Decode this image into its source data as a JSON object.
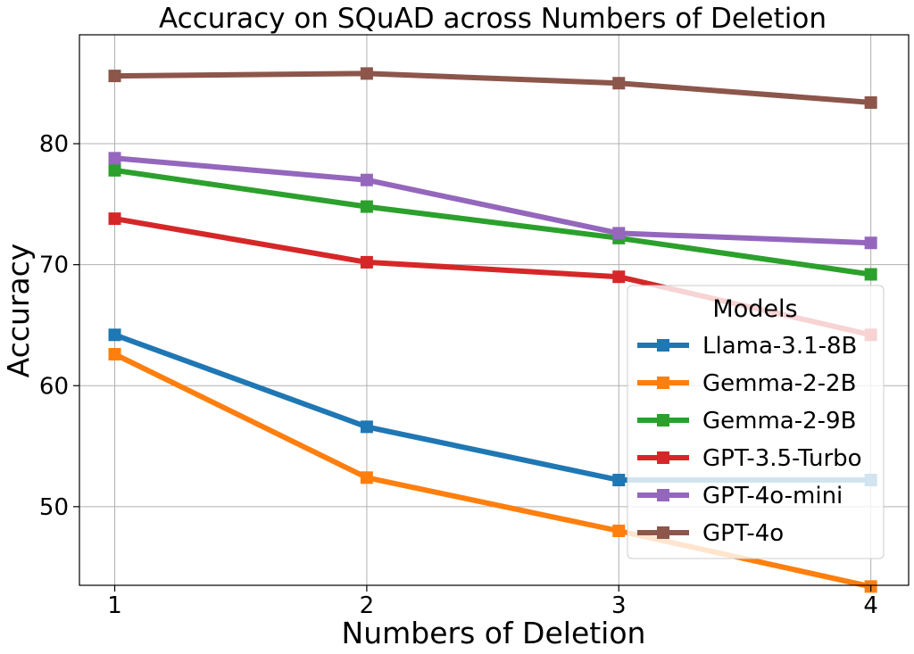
{
  "chart_data": {
    "type": "line",
    "title": "Accuracy on SQuAD across Numbers of Deletion",
    "xlabel": "Numbers of Deletion",
    "ylabel": "Accuracy",
    "x": [
      1,
      2,
      3,
      4
    ],
    "x_tick_labels": [
      "1",
      "2",
      "3",
      "4"
    ],
    "xlim": [
      0.86,
      4.15
    ],
    "ylim": [
      43.5,
      89
    ],
    "y_ticks": [
      50,
      60,
      70,
      80
    ],
    "y_tick_labels": [
      "50",
      "60",
      "70",
      "80"
    ],
    "grid": true,
    "legend": {
      "title": "Models",
      "placement": "center-right"
    },
    "marker": "square",
    "series": [
      {
        "name": "Llama-3.1-8B",
        "color": "#1f77b4",
        "values": [
          64.2,
          56.6,
          52.2,
          52.2
        ]
      },
      {
        "name": "Gemma-2-2B",
        "color": "#ff7f0e",
        "values": [
          62.6,
          52.4,
          48.0,
          43.4
        ]
      },
      {
        "name": "Gemma-2-9B",
        "color": "#2ca02c",
        "values": [
          77.8,
          74.8,
          72.2,
          69.2
        ]
      },
      {
        "name": "GPT-3.5-Turbo",
        "color": "#d62728",
        "values": [
          73.8,
          70.2,
          69.0,
          64.2
        ]
      },
      {
        "name": "GPT-4o-mini",
        "color": "#9467bd",
        "values": [
          78.8,
          77.0,
          72.6,
          71.8
        ]
      },
      {
        "name": "GPT-4o",
        "color": "#8c564b",
        "values": [
          85.6,
          85.8,
          85.0,
          83.4
        ]
      }
    ]
  }
}
